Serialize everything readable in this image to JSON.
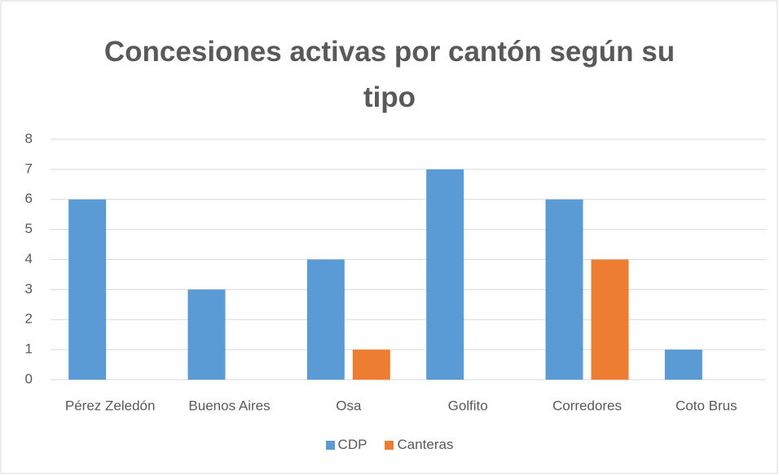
{
  "chart_data": {
    "type": "bar",
    "title": "Concesiones activas por cantón según su tipo",
    "categories": [
      "Pérez Zeledón",
      "Buenos Aires",
      "Osa",
      "Golfito",
      "Corredores",
      "Coto Brus"
    ],
    "series": [
      {
        "name": "CDP",
        "color": "#5b9bd5",
        "values": [
          6,
          3,
          4,
          7,
          6,
          1
        ]
      },
      {
        "name": "Canteras",
        "color": "#ed7d31",
        "values": [
          0,
          0,
          1,
          0,
          4,
          0
        ]
      }
    ],
    "ylim": [
      0,
      8
    ],
    "yticks": [
      0,
      1,
      2,
      3,
      4,
      5,
      6,
      7,
      8
    ],
    "grid": true,
    "legend": "bottom"
  }
}
